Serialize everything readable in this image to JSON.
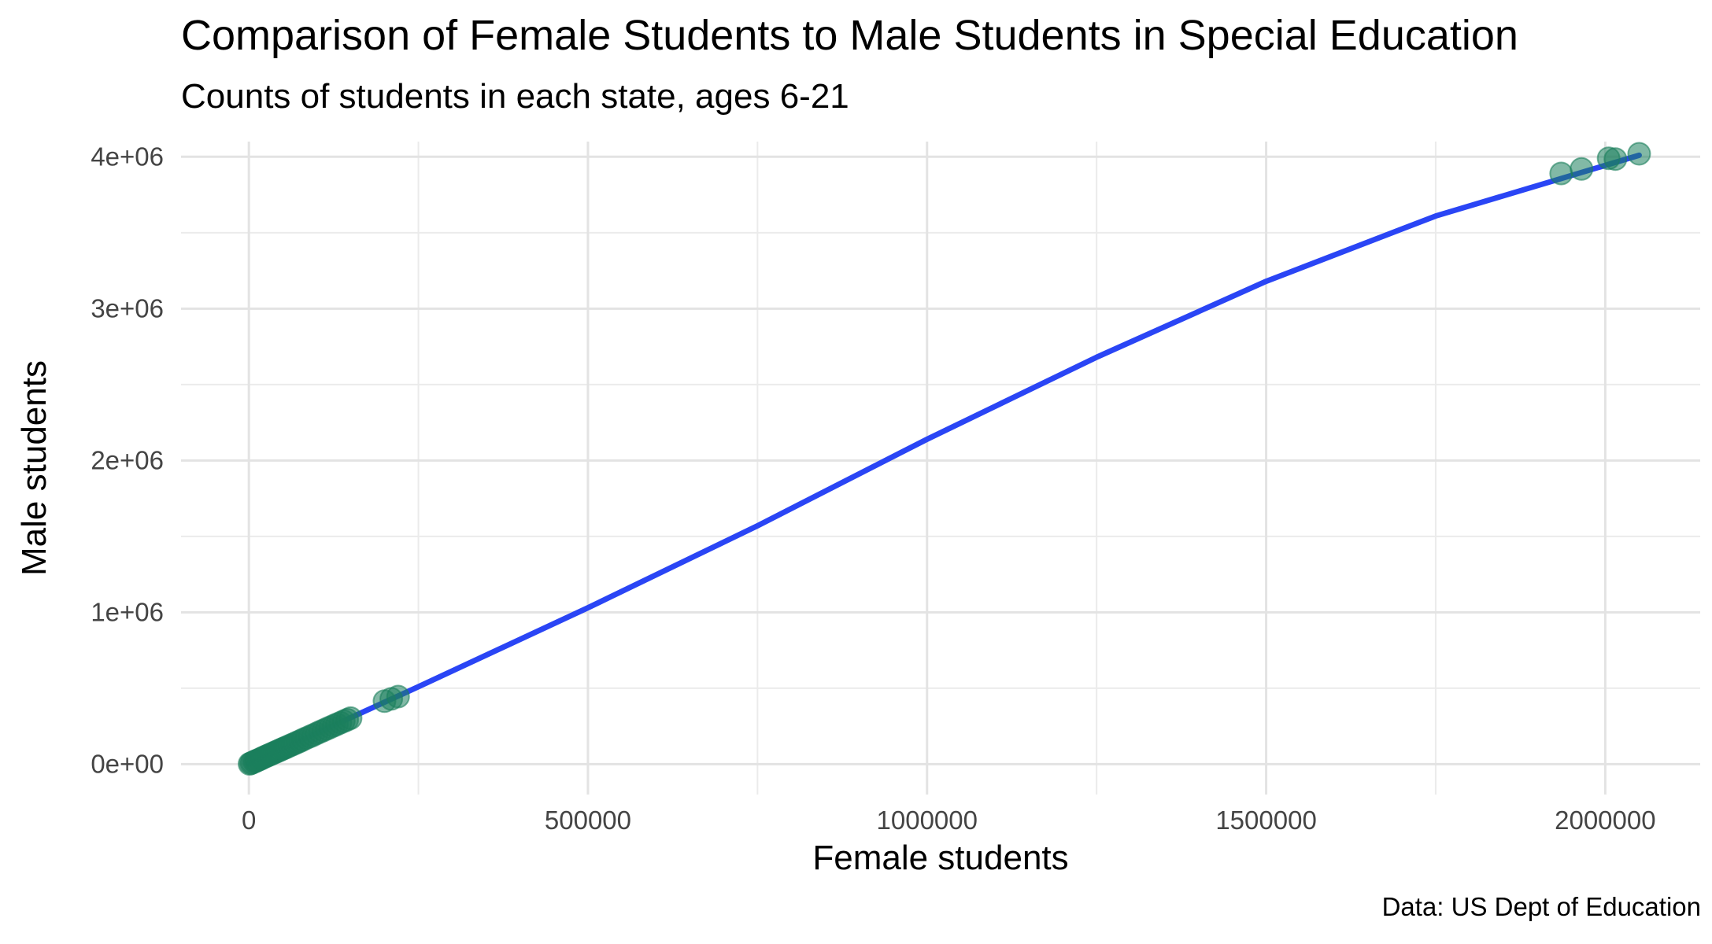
{
  "chart_data": {
    "type": "scatter",
    "title": "Comparison of Female Students to Male Students in Special Education",
    "subtitle": "Counts of students in each state, ages 6-21",
    "caption": "Data: US Dept of Education",
    "xlabel": "Female students",
    "ylabel": "Male students",
    "xlim": [
      -100000,
      2140000
    ],
    "ylim": [
      -200000,
      4100000
    ],
    "x_ticks": [
      0,
      500000,
      1000000,
      1500000,
      2000000
    ],
    "x_tick_labels": [
      "0",
      "500000",
      "1000000",
      "1500000",
      "2000000"
    ],
    "y_ticks": [
      0,
      1000000,
      2000000,
      3000000,
      4000000
    ],
    "y_tick_labels": [
      "0e+00",
      "1e+06",
      "2e+06",
      "3e+06",
      "4e+06"
    ],
    "grid": true,
    "point_color": "#1b7f5c",
    "line_color": "#2a45f5",
    "points": [
      {
        "x": 1000,
        "y": 2000
      },
      {
        "x": 3000,
        "y": 6000
      },
      {
        "x": 5000,
        "y": 10000
      },
      {
        "x": 8000,
        "y": 16000
      },
      {
        "x": 10000,
        "y": 20000
      },
      {
        "x": 12000,
        "y": 24000
      },
      {
        "x": 15000,
        "y": 30000
      },
      {
        "x": 18000,
        "y": 36000
      },
      {
        "x": 20000,
        "y": 41000
      },
      {
        "x": 23000,
        "y": 47000
      },
      {
        "x": 26000,
        "y": 53000
      },
      {
        "x": 29000,
        "y": 59000
      },
      {
        "x": 32000,
        "y": 65000
      },
      {
        "x": 35000,
        "y": 71000
      },
      {
        "x": 38000,
        "y": 77000
      },
      {
        "x": 41000,
        "y": 83000
      },
      {
        "x": 44000,
        "y": 89000
      },
      {
        "x": 47000,
        "y": 95000
      },
      {
        "x": 50000,
        "y": 101000
      },
      {
        "x": 53000,
        "y": 107000
      },
      {
        "x": 56000,
        "y": 113000
      },
      {
        "x": 60000,
        "y": 121000
      },
      {
        "x": 64000,
        "y": 129000
      },
      {
        "x": 68000,
        "y": 137000
      },
      {
        "x": 72000,
        "y": 145000
      },
      {
        "x": 76000,
        "y": 153000
      },
      {
        "x": 80000,
        "y": 162000
      },
      {
        "x": 85000,
        "y": 172000
      },
      {
        "x": 90000,
        "y": 182000
      },
      {
        "x": 95000,
        "y": 192000
      },
      {
        "x": 100000,
        "y": 203000
      },
      {
        "x": 105000,
        "y": 213000
      },
      {
        "x": 110000,
        "y": 223000
      },
      {
        "x": 115000,
        "y": 233000
      },
      {
        "x": 120000,
        "y": 243000
      },
      {
        "x": 125000,
        "y": 253000
      },
      {
        "x": 130000,
        "y": 263000
      },
      {
        "x": 135000,
        "y": 273000
      },
      {
        "x": 140000,
        "y": 283000
      },
      {
        "x": 145000,
        "y": 293000
      },
      {
        "x": 150000,
        "y": 303000
      },
      {
        "x": 200000,
        "y": 415000
      },
      {
        "x": 210000,
        "y": 430000
      },
      {
        "x": 220000,
        "y": 445000
      },
      {
        "x": 1935000,
        "y": 3890000
      },
      {
        "x": 1965000,
        "y": 3920000
      },
      {
        "x": 2005000,
        "y": 3990000
      },
      {
        "x": 2015000,
        "y": 3985000
      },
      {
        "x": 2050000,
        "y": 4020000
      }
    ],
    "trend_line": {
      "x": [
        0,
        250000,
        500000,
        750000,
        1000000,
        1250000,
        1500000,
        1750000,
        2050000
      ],
      "y": [
        0,
        510000,
        1030000,
        1570000,
        2140000,
        2680000,
        3180000,
        3610000,
        4010000
      ]
    }
  }
}
